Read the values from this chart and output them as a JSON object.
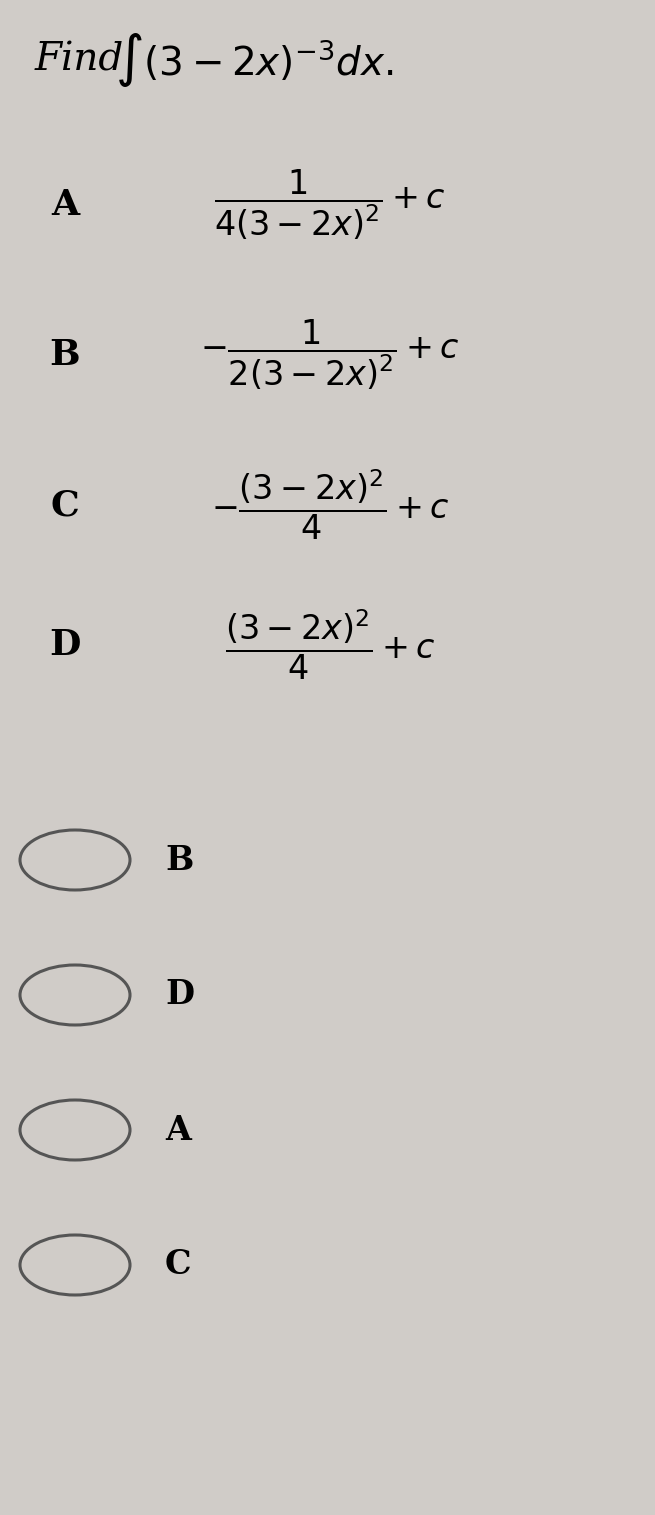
{
  "background_color": "#d0ccc8",
  "title_find": "Find ",
  "title_math": "$\\int(3-2x)^{-3}dx.$",
  "title_fontsize": 28,
  "option_A_label": "A",
  "option_B_label": "B",
  "option_C_label": "C",
  "option_D_label": "D",
  "option_A": "$\\dfrac{1}{4(3-2x)^{2}}+c$",
  "option_B": "$-\\dfrac{1}{2(3-2x)^{2}}+c$",
  "option_C": "$-\\dfrac{(3-2x)^{2}}{4}+c$",
  "option_D": "$\\dfrac{(3-2x)^{2}}{4}+c$",
  "radio_options": [
    "B",
    "D",
    "A",
    "C"
  ],
  "label_fontsize": 26,
  "formula_fontsize": 24,
  "radio_fontsize": 24,
  "fig_width": 6.55,
  "fig_height": 15.15,
  "dpi": 100
}
